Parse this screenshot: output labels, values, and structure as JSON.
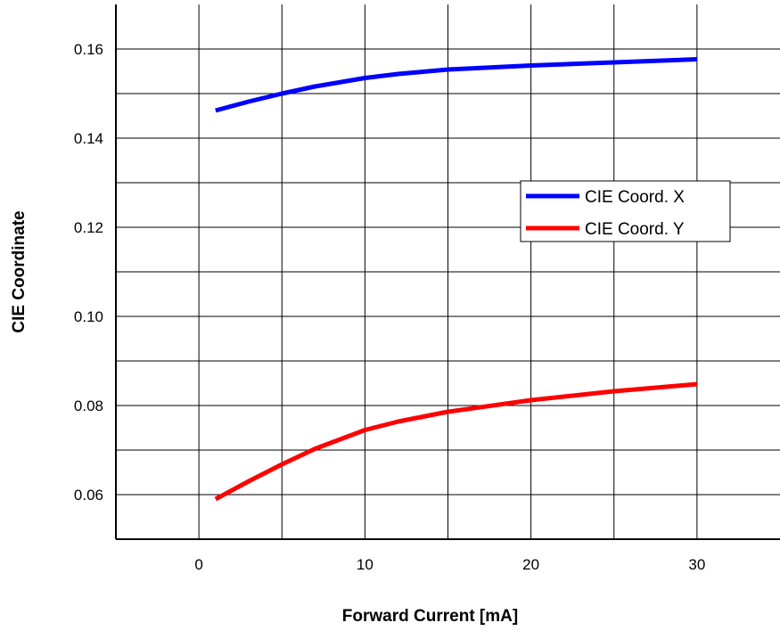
{
  "chart_data": {
    "type": "line",
    "xlabel": "Forward Current [mA]",
    "ylabel": "CIE Coordinate",
    "xlim": [
      -5,
      35
    ],
    "ylim": [
      0.05,
      0.17
    ],
    "x_ticks": [
      0,
      10,
      20,
      30
    ],
    "x_tick_labels": [
      "0",
      "10",
      "20",
      "30"
    ],
    "y_ticks": [
      0.06,
      0.08,
      0.1,
      0.12,
      0.14,
      0.16
    ],
    "y_tick_labels": [
      "0.06",
      "0.08",
      "0.10",
      "0.12",
      "0.14",
      "0.16"
    ],
    "grid": true,
    "legend_position": "center-right",
    "series": [
      {
        "name": "CIE Coord. X",
        "color": "#0000ff",
        "x": [
          1,
          3,
          5,
          7,
          10,
          12,
          15,
          20,
          25,
          30
        ],
        "y": [
          0.1462,
          0.1482,
          0.15,
          0.1516,
          0.1535,
          0.1544,
          0.1554,
          0.1563,
          0.157,
          0.1577
        ]
      },
      {
        "name": "CIE Coord. Y",
        "color": "#ff0000",
        "x": [
          1,
          3,
          5,
          7,
          10,
          12,
          15,
          20,
          25,
          30
        ],
        "y": [
          0.059,
          0.063,
          0.0668,
          0.0703,
          0.0745,
          0.0764,
          0.0786,
          0.0812,
          0.0832,
          0.0848
        ]
      }
    ]
  }
}
